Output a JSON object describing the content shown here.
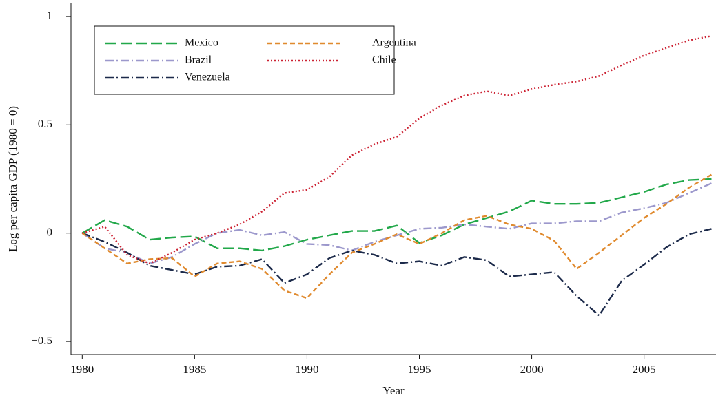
{
  "chart_data": {
    "type": "line",
    "x_label": "Year",
    "y_label": "Log per capita GDP (1980 = 0)",
    "x": [
      1980,
      1981,
      1982,
      1983,
      1984,
      1985,
      1986,
      1987,
      1988,
      1989,
      1990,
      1991,
      1992,
      1993,
      1994,
      1995,
      1996,
      1997,
      1998,
      1999,
      2000,
      2001,
      2002,
      2003,
      2004,
      2005,
      2006,
      2007,
      2008
    ],
    "series": [
      {
        "name": "Mexico",
        "color": "#22a84a",
        "dash": "long",
        "values": [
          0,
          0.06,
          0.03,
          -0.03,
          -0.02,
          -0.015,
          -0.07,
          -0.07,
          -0.08,
          -0.06,
          -0.03,
          -0.01,
          0.01,
          0.01,
          0.035,
          -0.045,
          -0.01,
          0.04,
          0.07,
          0.1,
          0.15,
          0.135,
          0.135,
          0.14,
          0.165,
          0.19,
          0.225,
          0.245,
          0.25
        ]
      },
      {
        "name": "Brazil",
        "color": "#9c98cc",
        "dash": "dashdot",
        "values": [
          0,
          -0.07,
          -0.09,
          -0.14,
          -0.11,
          -0.05,
          0,
          0.015,
          -0.01,
          0.005,
          -0.05,
          -0.055,
          -0.08,
          -0.04,
          -0.01,
          0.02,
          0.025,
          0.04,
          0.03,
          0.02,
          0.045,
          0.045,
          0.055,
          0.055,
          0.095,
          0.115,
          0.14,
          0.185,
          0.23
        ]
      },
      {
        "name": "Venezuela",
        "color": "#1c2a4a",
        "dash": "dashdot",
        "values": [
          0,
          -0.04,
          -0.09,
          -0.15,
          -0.17,
          -0.19,
          -0.155,
          -0.15,
          -0.12,
          -0.23,
          -0.19,
          -0.115,
          -0.08,
          -0.1,
          -0.14,
          -0.13,
          -0.15,
          -0.11,
          -0.125,
          -0.2,
          -0.19,
          -0.18,
          -0.29,
          -0.38,
          -0.22,
          -0.145,
          -0.065,
          -0.005,
          0.02
        ]
      },
      {
        "name": "Argentina",
        "color": "#e08a2e",
        "dash": "short",
        "values": [
          0,
          -0.07,
          -0.14,
          -0.12,
          -0.115,
          -0.2,
          -0.14,
          -0.13,
          -0.165,
          -0.265,
          -0.3,
          -0.19,
          -0.09,
          -0.05,
          -0.005,
          -0.05,
          0,
          0.06,
          0.08,
          0.04,
          0.02,
          -0.035,
          -0.165,
          -0.09,
          -0.01,
          0.07,
          0.135,
          0.21,
          0.27
        ]
      },
      {
        "name": "Chile",
        "color": "#cc2233",
        "dash": "dotted",
        "values": [
          0,
          0.03,
          -0.1,
          -0.14,
          -0.09,
          -0.03,
          0,
          0.04,
          0.1,
          0.185,
          0.2,
          0.26,
          0.36,
          0.41,
          0.445,
          0.53,
          0.59,
          0.635,
          0.655,
          0.635,
          0.665,
          0.685,
          0.7,
          0.725,
          0.775,
          0.82,
          0.855,
          0.89,
          0.91
        ]
      }
    ],
    "xlim": [
      1979.5,
      2008.2
    ],
    "ylim": [
      -0.56,
      1.06
    ],
    "xticks": [
      1980,
      1985,
      1990,
      1995,
      2000,
      2005
    ],
    "yticks": [
      {
        "value": -0.5,
        "label": "−0.5"
      },
      0,
      0.5,
      1
    ],
    "grid": false,
    "legend_position": "upper-left"
  }
}
